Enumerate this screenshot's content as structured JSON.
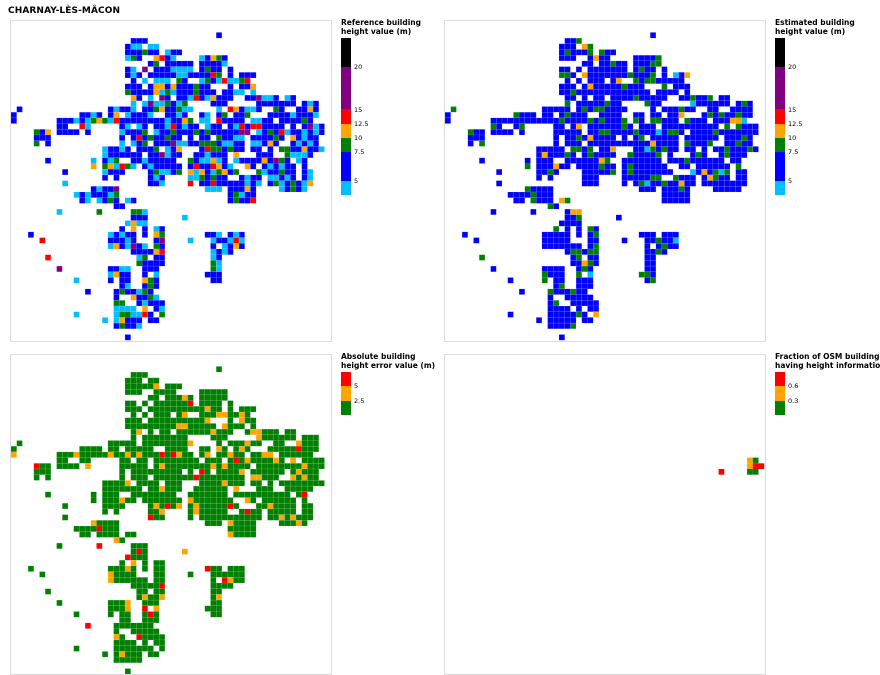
{
  "title": "CHARNAY-LÈS-MÂCON",
  "panels": [
    {
      "id": "reference",
      "legend_title": [
        "Reference building",
        "height value (m)"
      ],
      "colors": [
        "#00bfff",
        "#0000ff",
        "#008000",
        "#ffa500",
        "#ff0000",
        "#800080",
        "#000000"
      ],
      "ticks": [
        "20",
        "15",
        "12.5",
        "10",
        "7.5",
        "5"
      ],
      "legend_segments": [
        {
          "color": "#000000",
          "weight": 2
        },
        {
          "color": "#800080",
          "weight": 3
        },
        {
          "color": "#ff0000",
          "weight": 1
        },
        {
          "color": "#ffa500",
          "weight": 1
        },
        {
          "color": "#008000",
          "weight": 1
        },
        {
          "color": "#0000ff",
          "weight": 2
        },
        {
          "color": "#00bfff",
          "weight": 1
        }
      ]
    },
    {
      "id": "estimated",
      "legend_title": [
        "Estimated building",
        "height value (m)"
      ],
      "colors": [
        "#00bfff",
        "#0000ff",
        "#008000",
        "#ffa500",
        "#ff0000",
        "#800080",
        "#000000"
      ],
      "ticks": [
        "20",
        "15",
        "12.5",
        "10",
        "7.5",
        "5"
      ],
      "legend_segments": [
        {
          "color": "#000000",
          "weight": 2
        },
        {
          "color": "#800080",
          "weight": 3
        },
        {
          "color": "#ff0000",
          "weight": 1
        },
        {
          "color": "#ffa500",
          "weight": 1
        },
        {
          "color": "#008000",
          "weight": 1
        },
        {
          "color": "#0000ff",
          "weight": 2
        },
        {
          "color": "#00bfff",
          "weight": 1
        }
      ]
    },
    {
      "id": "error",
      "legend_title": [
        "Absolute building",
        "height error value (m)"
      ],
      "colors": [
        "#008000",
        "#ffa500",
        "#ff0000"
      ],
      "ticks": [
        "5",
        "2.5"
      ],
      "legend_segments": [
        {
          "color": "#ff0000",
          "weight": 1
        },
        {
          "color": "#ffa500",
          "weight": 1
        },
        {
          "color": "#008000",
          "weight": 1
        }
      ]
    },
    {
      "id": "osm",
      "legend_title": [
        "Fraction of OSM buildings",
        "having height information"
      ],
      "colors": [
        "#008000",
        "#ffa500",
        "#ff0000"
      ],
      "ticks": [
        "0.6",
        "0.3"
      ],
      "legend_segments": [
        {
          "color": "#ff0000",
          "weight": 1
        },
        {
          "color": "#ffa500",
          "weight": 1
        },
        {
          "color": "#008000",
          "weight": 1
        }
      ]
    }
  ]
}
